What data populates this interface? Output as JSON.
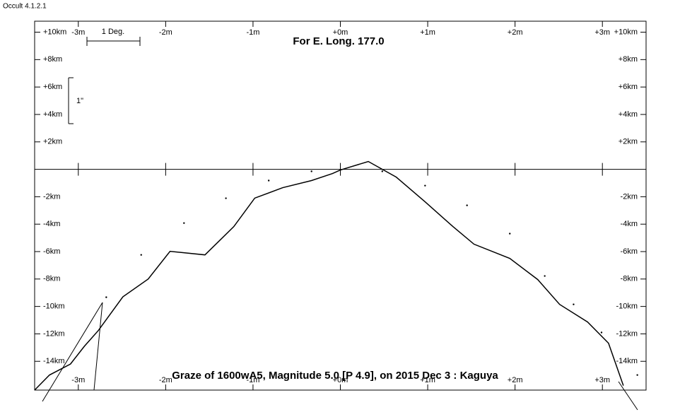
{
  "app_title": "Occult 4.1.2.1",
  "chart_data": {
    "type": "line",
    "title": "For E. Long. 177.0",
    "subtitle": "Graze of  1600wA5,  Magnitude 5.0 [P 4.9],  on 2015 Dec  3  :  Kaguya",
    "annotations": {
      "scale_deg": "1 Deg.",
      "scale_arcsec": "1\""
    },
    "xlim": [
      -3.5,
      3.5
    ],
    "ylim": [
      -16.1,
      10.8
    ],
    "xticks": [
      {
        "value": -3,
        "label": "-3m"
      },
      {
        "value": -2,
        "label": "-2m"
      },
      {
        "value": -1,
        "label": "-1m"
      },
      {
        "value": 0,
        "label": "+0m"
      },
      {
        "value": 1,
        "label": "+1m"
      },
      {
        "value": 2,
        "label": "+2m"
      },
      {
        "value": 3,
        "label": "+3m"
      }
    ],
    "yticks": [
      {
        "value": 10,
        "label": "+10km"
      },
      {
        "value": 8,
        "label": "+8km"
      },
      {
        "value": 6,
        "label": "+6km"
      },
      {
        "value": 4,
        "label": "+4km"
      },
      {
        "value": 2,
        "label": "+2km"
      },
      {
        "value": -2,
        "label": "-2km"
      },
      {
        "value": -4,
        "label": "-4km"
      },
      {
        "value": -6,
        "label": "-6km"
      },
      {
        "value": -8,
        "label": "-8km"
      },
      {
        "value": -10,
        "label": "-10km"
      },
      {
        "value": -12,
        "label": "-12km"
      },
      {
        "value": -14,
        "label": "-14km"
      }
    ],
    "series": [
      {
        "color": "#000000",
        "style": "solid",
        "x": [
          -3.5,
          -3.33,
          -3.09,
          -2.93,
          -2.77,
          -2.49,
          -2.2,
          -1.95,
          -1.55,
          -1.22,
          -0.98,
          -0.66,
          -0.33,
          -0.09,
          0,
          0.32,
          0.64,
          0.97,
          1.29,
          1.53,
          1.94,
          2.26,
          2.51,
          2.83,
          3.07,
          3.24
        ],
        "values": [
          -16.1,
          -15.0,
          -14.2,
          -12.9,
          -11.75,
          -9.3,
          -8.0,
          -5.98,
          -6.24,
          -4.18,
          -2.1,
          -1.34,
          -0.82,
          -0.31,
          -0.05,
          0.57,
          -0.57,
          -2.37,
          -4.18,
          -5.46,
          -6.5,
          -8.04,
          -9.85,
          -11.13,
          -12.68,
          -15.77
        ]
      },
      {
        "color": "#000000",
        "style": "dotted",
        "x": [
          -2.68,
          -2.28,
          -1.79,
          -1.31,
          -0.82,
          -0.33,
          0,
          0.48,
          0.97,
          1.45,
          1.94,
          2.34,
          2.67,
          2.99,
          3.4
        ],
        "values": [
          -9.33,
          -6.24,
          -3.92,
          -2.11,
          -0.82,
          -0.15,
          -0.05,
          -0.15,
          -1.19,
          -2.63,
          -4.69,
          -7.78,
          -9.85,
          -11.9,
          -15.0
        ]
      }
    ]
  }
}
